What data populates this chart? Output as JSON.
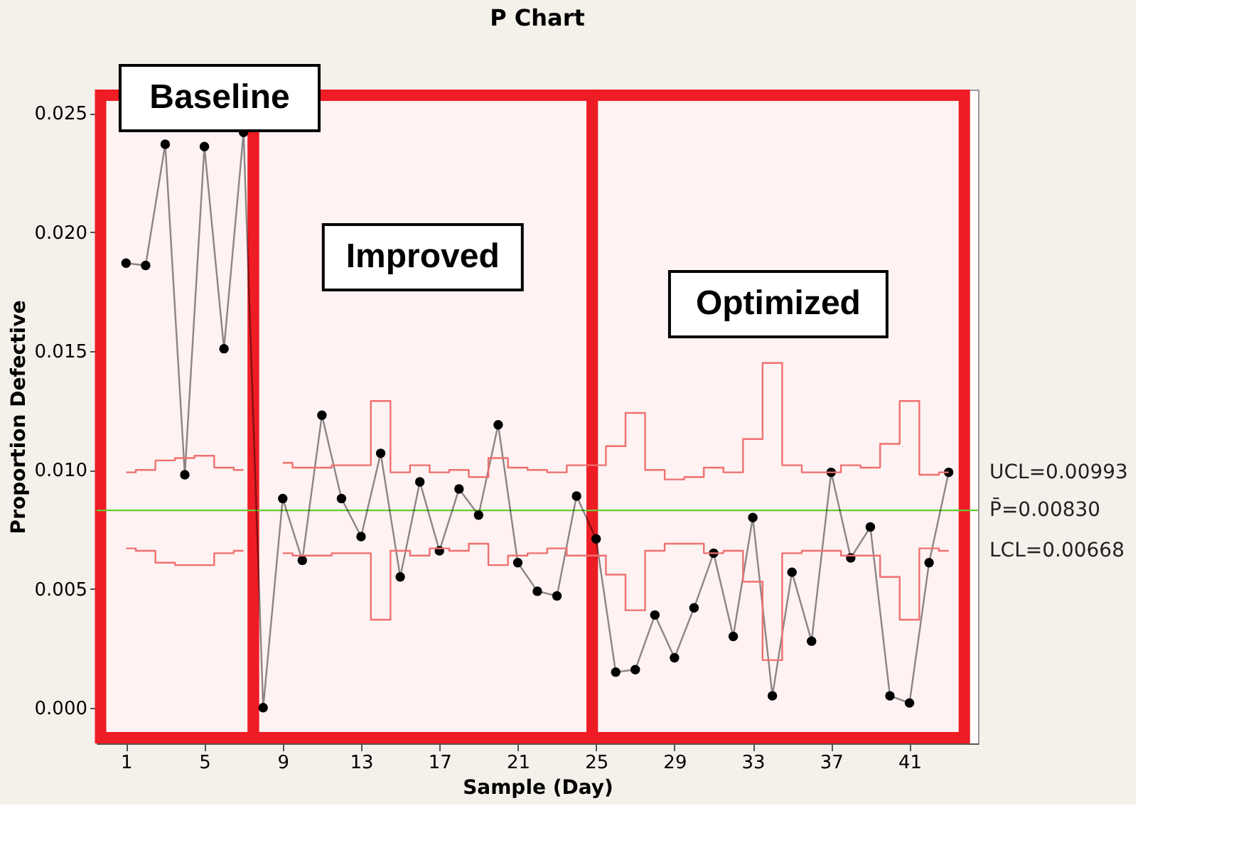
{
  "chart_data": {
    "type": "line",
    "title": "P Chart",
    "xlabel": "Sample (Day)",
    "ylabel": "Proportion Defective",
    "x": [
      1,
      2,
      3,
      4,
      5,
      6,
      7,
      8,
      9,
      10,
      11,
      12,
      13,
      14,
      15,
      16,
      17,
      18,
      19,
      20,
      21,
      22,
      23,
      24,
      25,
      26,
      27,
      28,
      29,
      30,
      31,
      32,
      33,
      34,
      35,
      36,
      37,
      38,
      39,
      40,
      41,
      42,
      43
    ],
    "series": [
      {
        "type": "line",
        "color": "#000000",
        "marker": "circle",
        "values": [
          0.0187,
          0.0186,
          0.0237,
          0.0098,
          0.0236,
          0.0151,
          0.0242,
          0.0,
          0.0088,
          0.0062,
          0.0123,
          0.0088,
          0.0072,
          0.0107,
          0.0055,
          0.0095,
          0.0066,
          0.0092,
          0.0081,
          0.0119,
          0.0061,
          0.0049,
          0.0047,
          0.0089,
          0.0071,
          0.0015,
          0.0016,
          0.0039,
          0.0021,
          0.0042,
          0.0065,
          0.003,
          0.008,
          0.0005,
          0.0057,
          0.0028,
          0.0099,
          0.0063,
          0.0076,
          0.0005,
          0.0002,
          0.0061,
          0.0099
        ]
      },
      {
        "type": "step",
        "name": "UCL=0.00993",
        "color": "#f07070",
        "marker": "none",
        "values": [
          0.0099,
          0.01,
          0.0104,
          0.0105,
          0.0106,
          0.0101,
          0.01,
          null,
          0.0103,
          0.0101,
          0.0101,
          0.0102,
          0.0102,
          0.0129,
          0.0099,
          0.0102,
          0.0099,
          0.01,
          0.0097,
          0.0105,
          0.0101,
          0.01,
          0.0099,
          0.0102,
          0.0102,
          0.011,
          0.0124,
          0.01,
          0.0096,
          0.0097,
          0.0101,
          0.0099,
          0.0113,
          0.0145,
          0.0102,
          0.0099,
          0.0099,
          0.0102,
          0.0101,
          0.0111,
          0.0129,
          0.0098,
          0.0099
        ]
      },
      {
        "type": "step",
        "name": "LCL=0.00668",
        "color": "#f07070",
        "marker": "none",
        "values": [
          0.0067,
          0.0066,
          0.0061,
          0.006,
          0.006,
          0.0065,
          0.0066,
          null,
          0.0065,
          0.0064,
          0.0064,
          0.0065,
          0.0065,
          0.0037,
          0.0066,
          0.0064,
          0.0067,
          0.0066,
          0.0069,
          0.006,
          0.0064,
          0.0065,
          0.0067,
          0.0064,
          0.0064,
          0.0056,
          0.0041,
          0.0066,
          0.0069,
          0.0069,
          0.0065,
          0.0066,
          0.0053,
          0.002,
          0.0065,
          0.0066,
          0.0066,
          0.0064,
          0.0064,
          0.0055,
          0.0037,
          0.0067,
          0.0066
        ]
      }
    ],
    "ref_lines": [
      {
        "axis": "y",
        "value": 0.0083,
        "label": "P̄=0.00830",
        "color": "#66cc33",
        "line_style": "solid"
      }
    ],
    "bands": [
      {
        "axis": "x",
        "from": -0.3,
        "to": 7.5,
        "label": "Baseline",
        "color": "#ee1c24"
      },
      {
        "axis": "x",
        "from": 7.5,
        "to": 24.8,
        "label": "Improved",
        "color": "#ee1c24"
      },
      {
        "axis": "x",
        "from": 24.8,
        "to": 43.8,
        "label": "Optimized",
        "color": "#ee1c24"
      }
    ],
    "xlim": [
      -0.5,
      44.5
    ],
    "xticks": [
      1,
      5,
      9,
      13,
      17,
      21,
      25,
      29,
      33,
      37,
      41
    ],
    "ylim": [
      -0.0015,
      0.026
    ],
    "yticks": [
      {
        "value": 0,
        "label": "0.000"
      },
      0.005,
      {
        "value": 0.01,
        "label": "0.010"
      },
      0.015,
      {
        "value": 0.02,
        "label": "0.020"
      },
      0.025
    ],
    "grid": false,
    "legend": false
  }
}
